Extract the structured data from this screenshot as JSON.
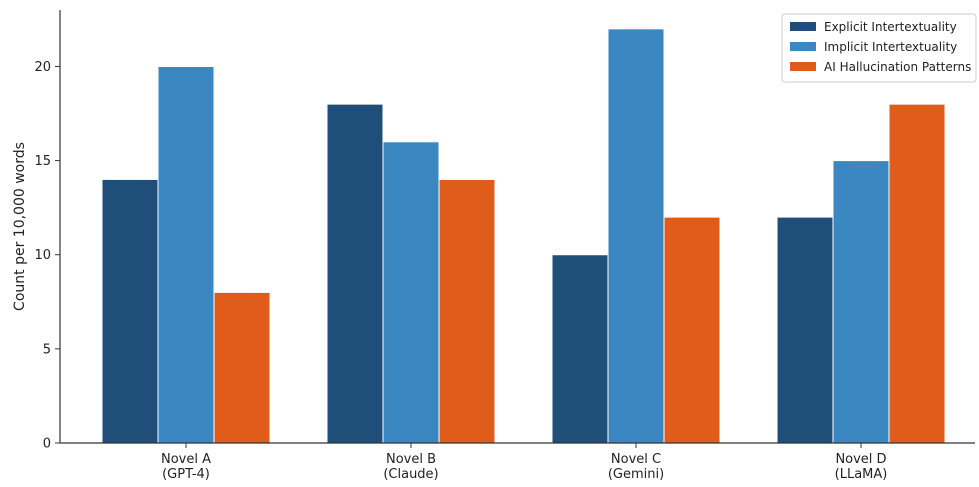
{
  "chart_data": {
    "type": "bar",
    "categories": [
      "Novel A\n(GPT-4)",
      "Novel B\n(Claude)",
      "Novel C\n(Gemini)",
      "Novel D\n(LLaMA)"
    ],
    "series": [
      {
        "name": "Explicit Intertextuality",
        "color": "#1f4e79",
        "values": [
          14,
          18,
          10,
          12
        ]
      },
      {
        "name": "Implicit Intertextuality",
        "color": "#3a87c2",
        "values": [
          20,
          16,
          22,
          15
        ]
      },
      {
        "name": "AI Hallucination Patterns",
        "color": "#e05c1a",
        "values": [
          8,
          14,
          12,
          18
        ]
      }
    ],
    "title": "",
    "xlabel": "",
    "ylabel": "Count per 10,000 words",
    "ylim": [
      0,
      23
    ],
    "yticks": [
      0,
      5,
      10,
      15,
      20
    ],
    "legend": "top-right",
    "grid": false
  }
}
